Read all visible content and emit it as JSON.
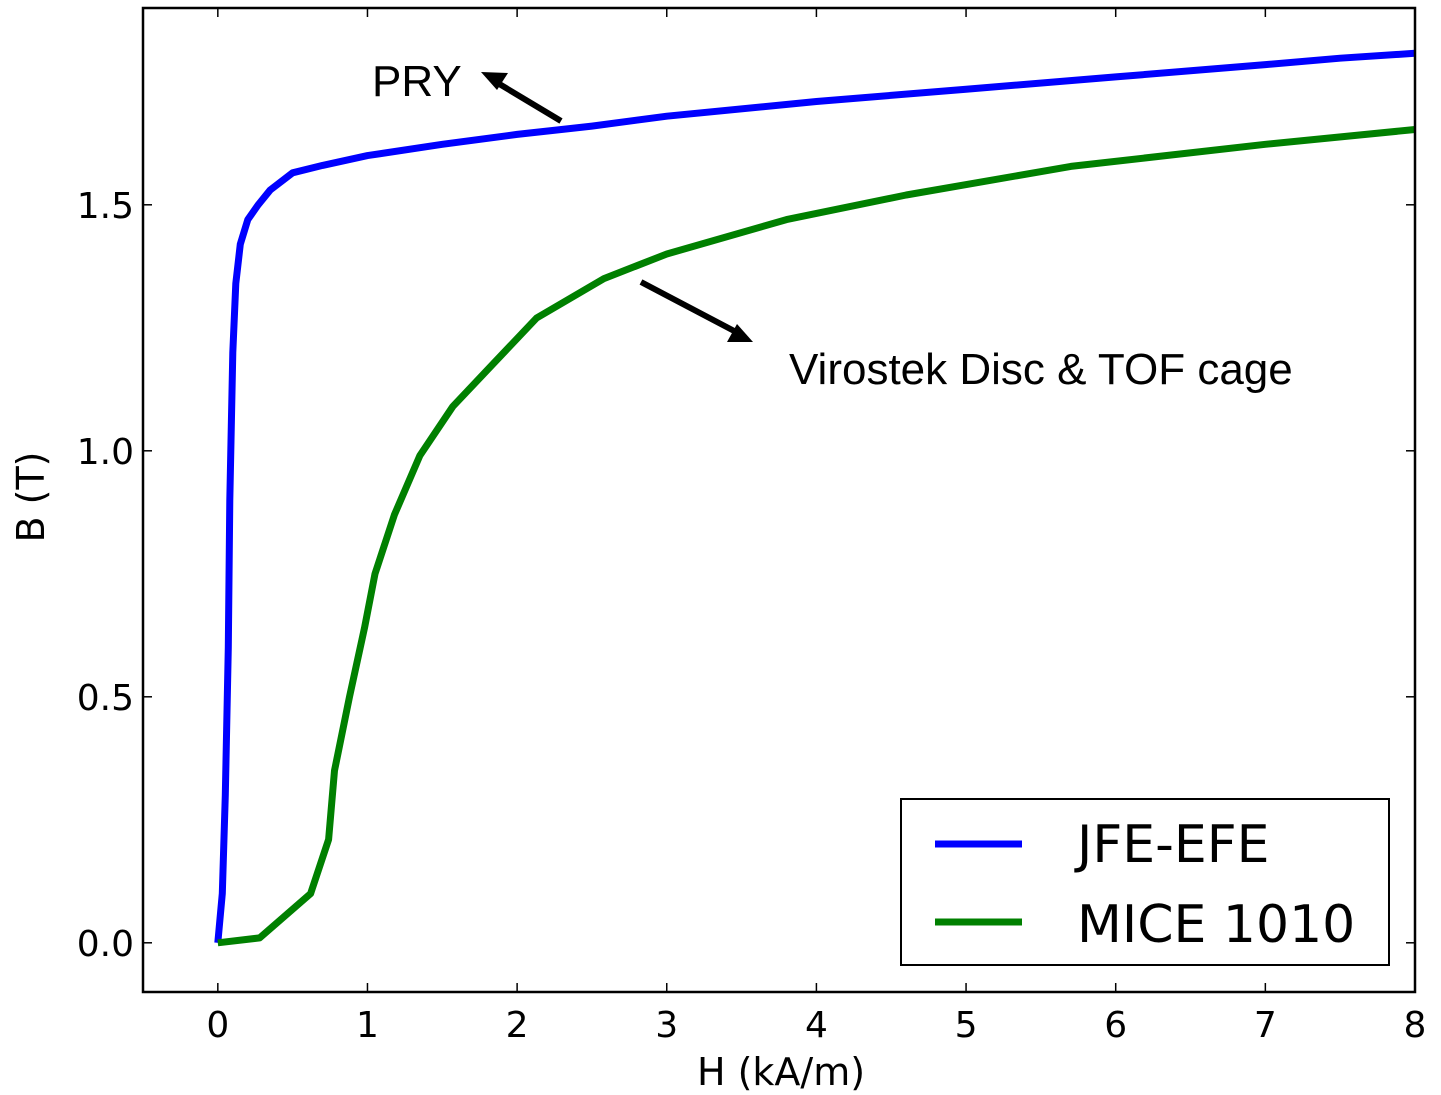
{
  "chart_data": {
    "type": "line",
    "title": "",
    "xlabel": "H (kA/m)",
    "ylabel": "B (T)",
    "xlim": [
      -0.5,
      8
    ],
    "ylim": [
      -0.1,
      1.9
    ],
    "xticks": [
      0,
      1,
      2,
      3,
      4,
      5,
      6,
      7,
      8
    ],
    "yticks": [
      0.0,
      0.5,
      1.0,
      1.5
    ],
    "xtick_labels": [
      "0",
      "1",
      "2",
      "3",
      "4",
      "5",
      "6",
      "7",
      "8"
    ],
    "ytick_labels": [
      "0.0",
      "0.5",
      "1.0",
      "1.5"
    ],
    "grid": false,
    "legend_position": "lower-right",
    "series": [
      {
        "name": "JFE-EFE",
        "color": "#0000ff",
        "x": [
          0,
          0.03,
          0.05,
          0.07,
          0.08,
          0.09,
          0.1,
          0.12,
          0.15,
          0.2,
          0.27,
          0.35,
          0.5,
          0.7,
          1.0,
          1.5,
          2.0,
          2.5,
          3.0,
          4.0,
          5.0,
          6.0,
          7.0,
          7.5,
          8.0
        ],
        "y": [
          0,
          0.1,
          0.3,
          0.6,
          0.9,
          1.05,
          1.2,
          1.34,
          1.42,
          1.47,
          1.5,
          1.53,
          1.565,
          1.58,
          1.6,
          1.623,
          1.643,
          1.66,
          1.68,
          1.71,
          1.735,
          1.76,
          1.785,
          1.798,
          1.808
        ]
      },
      {
        "name": "MICE 1010",
        "color": "#008000",
        "x": [
          0,
          0.28,
          0.62,
          0.74,
          0.78,
          0.88,
          0.98,
          1.05,
          1.18,
          1.35,
          1.57,
          1.85,
          2.13,
          2.58,
          3.0,
          3.8,
          4.6,
          5.7,
          7.0,
          8.0
        ],
        "y": [
          0,
          0.01,
          0.1,
          0.21,
          0.35,
          0.5,
          0.64,
          0.75,
          0.87,
          0.99,
          1.09,
          1.18,
          1.27,
          1.35,
          1.4,
          1.47,
          1.52,
          1.578,
          1.623,
          1.653
        ]
      }
    ],
    "annotations": [
      {
        "text": "PRY"
      },
      {
        "text": "Virostek Disc & TOF cage"
      }
    ]
  }
}
